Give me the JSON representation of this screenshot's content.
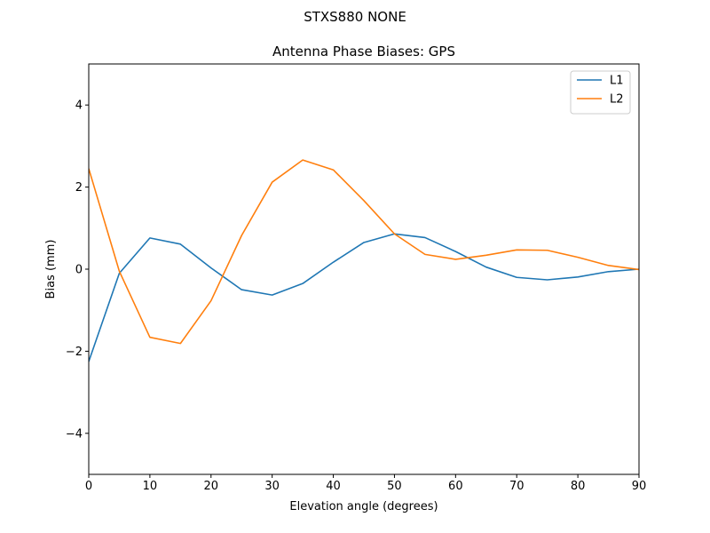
{
  "chart_data": {
    "type": "line",
    "suptitle": "STXS880          NONE",
    "title": "Antenna Phase Biases: GPS",
    "xlabel": "Elevation angle (degrees)",
    "ylabel": "Bias (mm)",
    "xlim": [
      0,
      90
    ],
    "ylim": [
      -5,
      5
    ],
    "xticks": [
      0,
      10,
      20,
      30,
      40,
      50,
      60,
      70,
      80,
      90
    ],
    "yticks": [
      -4,
      -2,
      0,
      2,
      4
    ],
    "ytick_labels": [
      "−4",
      "−2",
      "0",
      "2",
      "4"
    ],
    "grid": false,
    "legend_position": "top-right",
    "x": [
      0,
      5,
      10,
      15,
      20,
      25,
      30,
      35,
      40,
      45,
      50,
      55,
      60,
      65,
      70,
      75,
      80,
      85,
      90
    ],
    "series": [
      {
        "name": "L1",
        "color": "#1f77b4",
        "values": [
          -2.25,
          -0.1,
          0.76,
          0.61,
          0.03,
          -0.5,
          -0.63,
          -0.35,
          0.17,
          0.65,
          0.86,
          0.77,
          0.43,
          0.05,
          -0.2,
          -0.26,
          -0.19,
          -0.06,
          0.0
        ]
      },
      {
        "name": "L2",
        "color": "#ff7f0e",
        "values": [
          2.45,
          -0.05,
          -1.66,
          -1.81,
          -0.77,
          0.82,
          2.12,
          2.66,
          2.42,
          1.67,
          0.86,
          0.36,
          0.24,
          0.34,
          0.47,
          0.46,
          0.29,
          0.09,
          -0.01
        ]
      }
    ]
  }
}
